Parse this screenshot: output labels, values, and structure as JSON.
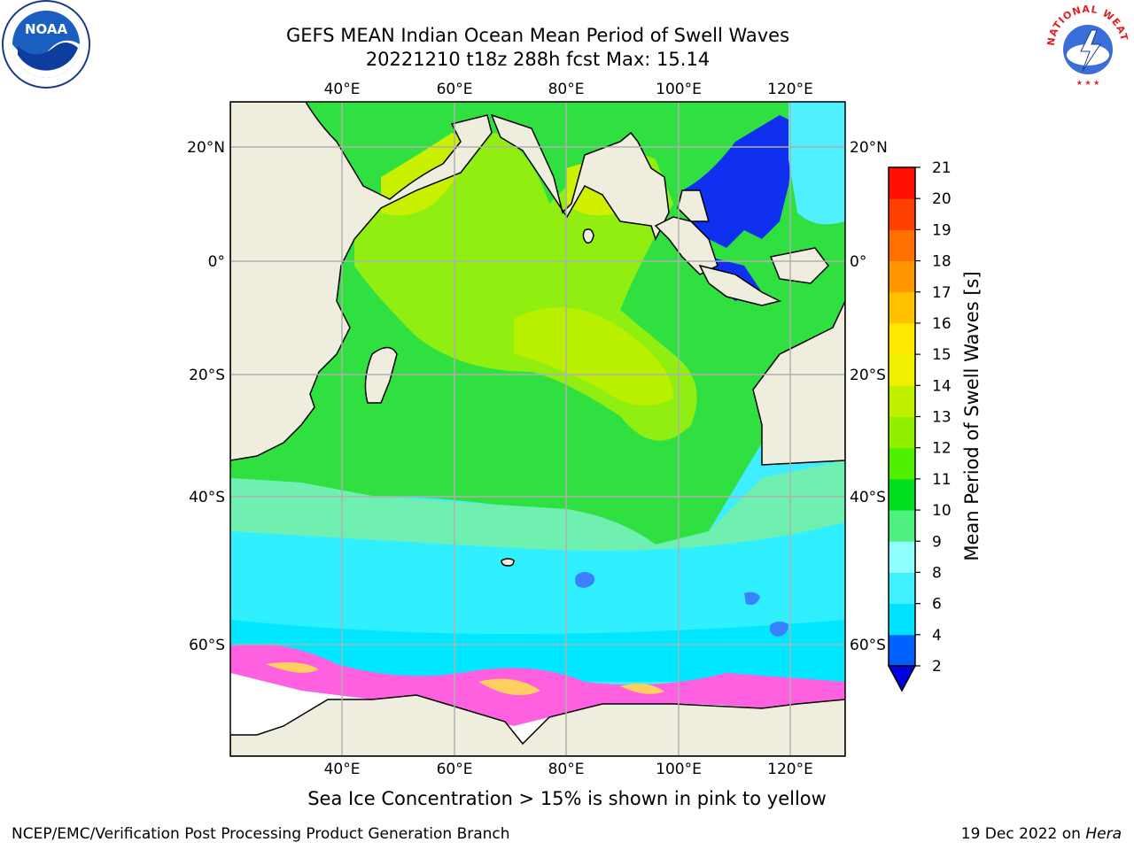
{
  "title_line1": "GEFS MEAN Indian Ocean Mean Period of Swell Waves",
  "title_line2": "20221210 t18z 288h fcst   Max: 15.14",
  "lon_ticks": [
    "40°E",
    "60°E",
    "80°E",
    "100°E",
    "120°E"
  ],
  "lat_ticks": [
    "20°N",
    "0°",
    "20°S",
    "40°S",
    "60°S"
  ],
  "colorbar": {
    "label": "Mean Period of Swell Waves [s]",
    "ticks": [
      "2",
      "4",
      "6",
      "8",
      "9",
      "10",
      "11",
      "12",
      "13",
      "14",
      "15",
      "16",
      "17",
      "18",
      "19",
      "20",
      "21"
    ],
    "colors": [
      "#0060ff",
      "#00e0ff",
      "#40f0ff",
      "#90ffff",
      "#50f080",
      "#00e020",
      "#50f000",
      "#90f000",
      "#c0f000",
      "#f0f000",
      "#ffe800",
      "#ffc000",
      "#ff9800",
      "#ff7000",
      "#ff4000",
      "#ff1000"
    ],
    "under_color": "#0000e0"
  },
  "caption": "Sea Ice Concentration > 15% is shown in pink to yellow",
  "footer_left": "NCEP/EMC/Verification Post Processing Product Generation Branch",
  "footer_right_prefix": "19 Dec 2022 on ",
  "footer_right_host": "Hera",
  "logos": {
    "noaa_text": "NOAA",
    "nws_text": "NATIONAL WEATHER SERVICE"
  }
}
